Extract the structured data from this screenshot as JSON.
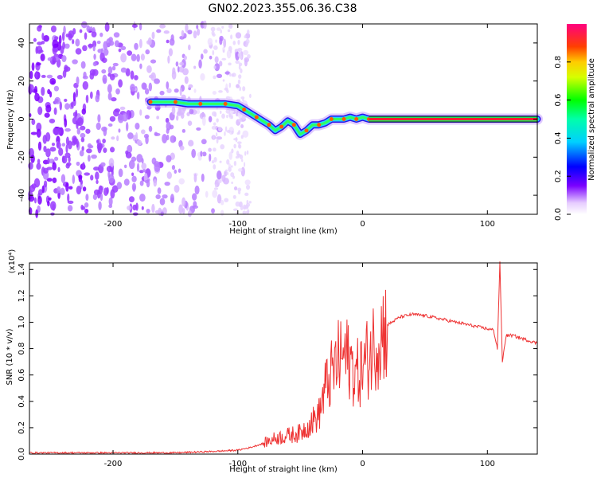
{
  "title": "GN02.2023.355.06.36.C38",
  "chart_data": [
    {
      "type": "heatmap",
      "xlabel": "Height of straight line (km)",
      "ylabel": "Frequency (Hz)",
      "xlim": [
        -267,
        140
      ],
      "ylim": [
        -50,
        50
      ],
      "xticks": [
        -200,
        -100,
        0,
        100
      ],
      "yticks": [
        -40,
        -20,
        0,
        20,
        40
      ],
      "colorbar": {
        "label": "Normalized spectral amplitude",
        "range": [
          0,
          1
        ],
        "ticks": [
          "0.0",
          "0.2",
          "0.4",
          "0.6",
          "0.8"
        ]
      },
      "trace": {
        "x": [
          -170,
          -160,
          -150,
          -140,
          -130,
          -120,
          -110,
          -100,
          -95,
          -90,
          -85,
          -80,
          -75,
          -70,
          -65,
          -60,
          -55,
          -50,
          -45,
          -40,
          -35,
          -30,
          -25,
          -20,
          -15,
          -10,
          -5,
          0,
          5,
          100,
          106,
          140
        ],
        "y": [
          9,
          9,
          9,
          8,
          8,
          8,
          8,
          7,
          5,
          3,
          1,
          -1,
          -3,
          -6,
          -4,
          -1,
          -3,
          -8,
          -6,
          -3,
          -3,
          -2,
          0,
          0,
          0,
          1,
          0,
          1,
          0,
          0,
          0,
          0
        ]
      }
    },
    {
      "type": "line",
      "xlabel": "Height of straight line (km)",
      "ylabel": "SNR (10 * v/v)",
      "yscale_note": "(x10⁴)",
      "xlim": [
        -267,
        140
      ],
      "ylim": [
        0,
        1.45
      ],
      "xticks": [
        -200,
        -100,
        0,
        100
      ],
      "yticks": [
        "0.0",
        "0.2",
        "0.4",
        "0.6",
        "0.8",
        "1.0",
        "1.2",
        "1.4"
      ],
      "series": [
        {
          "color": "#ee3333",
          "x": [
            -267,
            -200,
            -150,
            -120,
            -100,
            -90,
            -80,
            -70,
            -60,
            -50,
            -40,
            -35,
            -30,
            -25,
            -20,
            -15,
            -10,
            -5,
            0,
            10,
            20,
            30,
            40,
            50,
            60,
            70,
            80,
            90,
            100,
            105,
            108,
            110,
            112,
            115,
            120,
            130,
            140
          ],
          "y": [
            0.01,
            0.01,
            0.01,
            0.02,
            0.03,
            0.05,
            0.08,
            0.12,
            0.14,
            0.16,
            0.25,
            0.3,
            0.5,
            0.6,
            0.7,
            0.75,
            0.7,
            0.6,
            0.65,
            0.85,
            0.98,
            1.04,
            1.06,
            1.05,
            1.03,
            1.01,
            0.99,
            0.97,
            0.95,
            0.94,
            0.8,
            1.45,
            0.7,
            0.9,
            0.9,
            0.87,
            0.84
          ]
        }
      ]
    }
  ]
}
